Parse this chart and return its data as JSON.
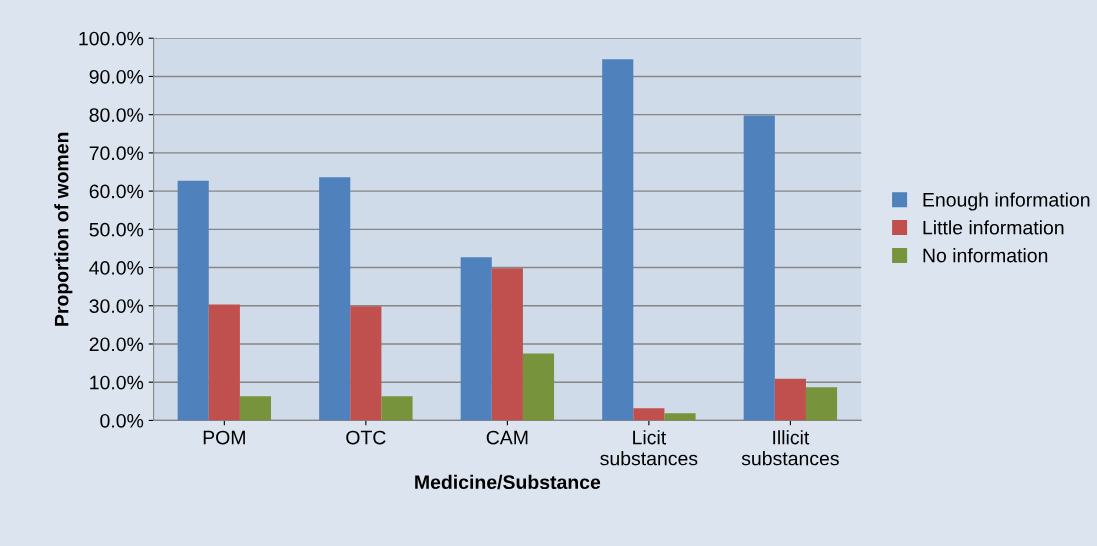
{
  "chart_data": {
    "type": "bar",
    "xlabel": "Medicine/Substance",
    "ylabel": "Proportion of women",
    "categories": [
      "POM",
      "OTC",
      "CAM",
      "Licit\nsubstances",
      "Illicit\nsubstances"
    ],
    "series": [
      {
        "name": "Enough information",
        "color": "#4f81bd",
        "values": [
          62.7,
          63.6,
          42.7,
          94.5,
          79.8
        ]
      },
      {
        "name": "Little information",
        "color": "#c0504d",
        "values": [
          30.3,
          29.9,
          39.8,
          3.2,
          10.9
        ]
      },
      {
        "name": "No information",
        "color": "#77933c",
        "values": [
          6.3,
          6.3,
          17.5,
          1.9,
          8.7
        ]
      }
    ],
    "ylim": [
      0,
      100
    ],
    "yticks": [
      {
        "value": 0,
        "label": "0.0%"
      },
      {
        "value": 10,
        "label": "10.0%"
      },
      {
        "value": 20,
        "label": "20.0%"
      },
      {
        "value": 30,
        "label": "30.0%"
      },
      {
        "value": 40,
        "label": "40.0%"
      },
      {
        "value": 50,
        "label": "50.0%"
      },
      {
        "value": 60,
        "label": "60.0%"
      },
      {
        "value": 70,
        "label": "70.0%"
      },
      {
        "value": 80,
        "label": "80.0%"
      },
      {
        "value": 90,
        "label": "90.0%"
      },
      {
        "value": 100,
        "label": "100.0%"
      }
    ],
    "grid": "y",
    "legend": "right"
  }
}
